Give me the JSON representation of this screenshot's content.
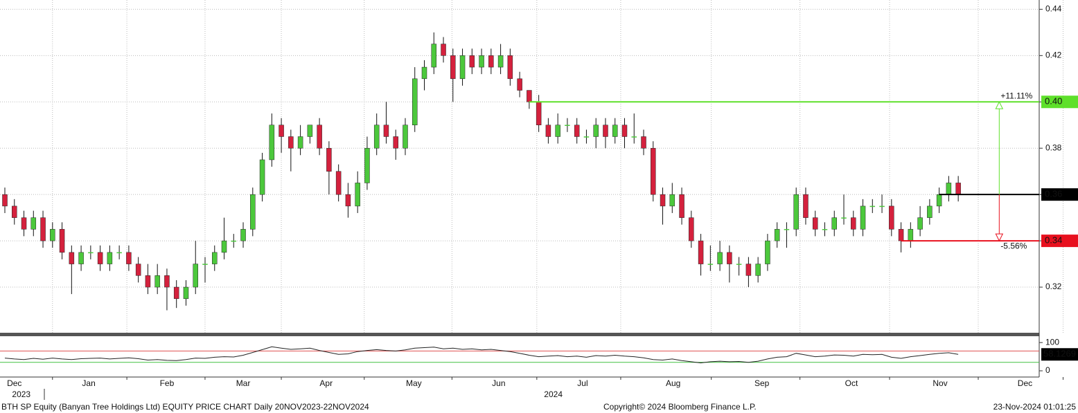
{
  "chart_data": {
    "type": "candlestick",
    "title": "BTH SP Equity (Banyan Tree Holdings Ltd) EQUITY PRICE CHART  Daily 20NOV2023-22NOV2024",
    "copyright": "Copyright© 2024 Bloomberg Finance L.P.",
    "timestamp": "23-Nov-2024 01:01:25",
    "up_color": "#4cc83c",
    "down_color": "#d4213d",
    "grid": true,
    "xlim": [
      0,
      109
    ],
    "ylim": [
      0.3,
      0.444
    ],
    "yticks": [
      0.32,
      0.34,
      0.36,
      0.38,
      {
        "value": 0.4,
        "label": "0.40"
      },
      0.42,
      0.44
    ],
    "xticks": [
      {
        "value": 1,
        "label": "Dec"
      },
      {
        "value": 8.8,
        "label": "Jan"
      },
      {
        "value": 17,
        "label": "Feb"
      },
      {
        "value": 25,
        "label": "Mar"
      },
      {
        "value": 33.7,
        "label": "Apr"
      },
      {
        "value": 42.9,
        "label": "May"
      },
      {
        "value": 51.8,
        "label": "Jun"
      },
      {
        "value": 60.6,
        "label": "Jul"
      },
      {
        "value": 70.1,
        "label": "Aug"
      },
      {
        "value": 79.4,
        "label": "Sep"
      },
      {
        "value": 88.8,
        "label": "Oct"
      },
      {
        "value": 98.1,
        "label": "Nov"
      },
      {
        "value": 107,
        "label": "Dec"
      }
    ],
    "year_ticks": [
      {
        "value": 1,
        "label": "2023"
      },
      {
        "value": 56.8,
        "label": "2024"
      }
    ],
    "series": [
      {
        "name": "BTH SP Equity",
        "values": [
          [
            0.36,
            0.363,
            0.352,
            0.355
          ],
          [
            0.355,
            0.358,
            0.347,
            0.35
          ],
          [
            0.35,
            0.353,
            0.342,
            0.345
          ],
          [
            0.345,
            0.353,
            0.342,
            0.35
          ],
          [
            0.35,
            0.353,
            0.337,
            0.34
          ],
          [
            0.34,
            0.348,
            0.337,
            0.345
          ],
          [
            0.345,
            0.348,
            0.332,
            0.335
          ],
          [
            0.335,
            0.338,
            0.317,
            0.33
          ],
          [
            0.33,
            0.338,
            0.327,
            0.335
          ],
          [
            0.335,
            0.338,
            0.332,
            0.335
          ],
          [
            0.335,
            0.338,
            0.327,
            0.33
          ],
          [
            0.33,
            0.338,
            0.327,
            0.335
          ],
          [
            0.335,
            0.338,
            0.332,
            0.335
          ],
          [
            0.335,
            0.338,
            0.327,
            0.33
          ],
          [
            0.33,
            0.333,
            0.322,
            0.325
          ],
          [
            0.325,
            0.33,
            0.317,
            0.32
          ],
          [
            0.32,
            0.33,
            0.317,
            0.325
          ],
          [
            0.325,
            0.328,
            0.31,
            0.32
          ],
          [
            0.32,
            0.323,
            0.311,
            0.315
          ],
          [
            0.315,
            0.323,
            0.312,
            0.32
          ],
          [
            0.32,
            0.34,
            0.317,
            0.33
          ],
          [
            0.33,
            0.333,
            0.322,
            0.33
          ],
          [
            0.33,
            0.338,
            0.327,
            0.335
          ],
          [
            0.335,
            0.35,
            0.332,
            0.34
          ],
          [
            0.34,
            0.343,
            0.337,
            0.34
          ],
          [
            0.34,
            0.348,
            0.337,
            0.345
          ],
          [
            0.345,
            0.363,
            0.342,
            0.36
          ],
          [
            0.36,
            0.378,
            0.357,
            0.375
          ],
          [
            0.375,
            0.395,
            0.372,
            0.39
          ],
          [
            0.39,
            0.393,
            0.378,
            0.385
          ],
          [
            0.385,
            0.388,
            0.37,
            0.38
          ],
          [
            0.38,
            0.39,
            0.377,
            0.385
          ],
          [
            0.385,
            0.39,
            0.382,
            0.39
          ],
          [
            0.39,
            0.393,
            0.377,
            0.38
          ],
          [
            0.38,
            0.383,
            0.36,
            0.37
          ],
          [
            0.37,
            0.373,
            0.357,
            0.36
          ],
          [
            0.36,
            0.365,
            0.35,
            0.355
          ],
          [
            0.355,
            0.37,
            0.352,
            0.365
          ],
          [
            0.365,
            0.385,
            0.362,
            0.38
          ],
          [
            0.38,
            0.395,
            0.377,
            0.39
          ],
          [
            0.39,
            0.4,
            0.382,
            0.385
          ],
          [
            0.385,
            0.388,
            0.375,
            0.38
          ],
          [
            0.38,
            0.393,
            0.377,
            0.39
          ],
          [
            0.39,
            0.415,
            0.387,
            0.41
          ],
          [
            0.41,
            0.418,
            0.405,
            0.415
          ],
          [
            0.415,
            0.43,
            0.412,
            0.425
          ],
          [
            0.425,
            0.428,
            0.417,
            0.42
          ],
          [
            0.42,
            0.423,
            0.4,
            0.41
          ],
          [
            0.41,
            0.423,
            0.407,
            0.42
          ],
          [
            0.42,
            0.423,
            0.412,
            0.415
          ],
          [
            0.415,
            0.423,
            0.412,
            0.42
          ],
          [
            0.42,
            0.423,
            0.412,
            0.415
          ],
          [
            0.415,
            0.425,
            0.412,
            0.42
          ],
          [
            0.42,
            0.423,
            0.407,
            0.41
          ],
          [
            0.41,
            0.413,
            0.402,
            0.405
          ],
          [
            0.405,
            0.405,
            0.397,
            0.4
          ],
          [
            0.4,
            0.403,
            0.387,
            0.39
          ],
          [
            0.39,
            0.393,
            0.382,
            0.385
          ],
          [
            0.385,
            0.395,
            0.382,
            0.39
          ],
          [
            0.39,
            0.393,
            0.387,
            0.39
          ],
          [
            0.39,
            0.393,
            0.382,
            0.385
          ],
          [
            0.385,
            0.388,
            0.382,
            0.385
          ],
          [
            0.385,
            0.393,
            0.38,
            0.39
          ],
          [
            0.39,
            0.393,
            0.38,
            0.385
          ],
          [
            0.385,
            0.393,
            0.382,
            0.39
          ],
          [
            0.39,
            0.393,
            0.38,
            0.385
          ],
          [
            0.385,
            0.395,
            0.382,
            0.385
          ],
          [
            0.385,
            0.388,
            0.377,
            0.38
          ],
          [
            0.38,
            0.383,
            0.357,
            0.36
          ],
          [
            0.36,
            0.363,
            0.347,
            0.355
          ],
          [
            0.355,
            0.365,
            0.352,
            0.36
          ],
          [
            0.36,
            0.363,
            0.347,
            0.35
          ],
          [
            0.35,
            0.353,
            0.337,
            0.34
          ],
          [
            0.34,
            0.343,
            0.325,
            0.33
          ],
          [
            0.33,
            0.338,
            0.327,
            0.33
          ],
          [
            0.33,
            0.34,
            0.327,
            0.335
          ],
          [
            0.335,
            0.338,
            0.322,
            0.33
          ],
          [
            0.33,
            0.333,
            0.325,
            0.33
          ],
          [
            0.33,
            0.333,
            0.32,
            0.325
          ],
          [
            0.325,
            0.333,
            0.322,
            0.33
          ],
          [
            0.33,
            0.343,
            0.327,
            0.34
          ],
          [
            0.34,
            0.348,
            0.337,
            0.345
          ],
          [
            0.345,
            0.348,
            0.337,
            0.345
          ],
          [
            0.345,
            0.363,
            0.342,
            0.36
          ],
          [
            0.36,
            0.363,
            0.347,
            0.35
          ],
          [
            0.35,
            0.353,
            0.342,
            0.345
          ],
          [
            0.345,
            0.348,
            0.342,
            0.345
          ],
          [
            0.345,
            0.353,
            0.342,
            0.35
          ],
          [
            0.35,
            0.36,
            0.347,
            0.35
          ],
          [
            0.35,
            0.353,
            0.342,
            0.345
          ],
          [
            0.345,
            0.358,
            0.342,
            0.355
          ],
          [
            0.355,
            0.358,
            0.352,
            0.355
          ],
          [
            0.355,
            0.36,
            0.352,
            0.355
          ],
          [
            0.355,
            0.358,
            0.342,
            0.345
          ],
          [
            0.345,
            0.348,
            0.335,
            0.34
          ],
          [
            0.34,
            0.348,
            0.337,
            0.345
          ],
          [
            0.345,
            0.355,
            0.342,
            0.35
          ],
          [
            0.35,
            0.358,
            0.347,
            0.355
          ],
          [
            0.355,
            0.363,
            0.352,
            0.36
          ],
          [
            0.36,
            0.368,
            0.357,
            0.365
          ],
          [
            0.365,
            0.368,
            0.357,
            0.36
          ]
        ]
      }
    ],
    "levels": [
      {
        "value": 0.4,
        "label": "0.40",
        "start": 55,
        "color": "#5ee02a",
        "change": "+11.11%"
      },
      {
        "value": 0.36,
        "label": "0.36",
        "start": 98,
        "color": "#000000"
      },
      {
        "value": 0.34,
        "label": "0.34",
        "start": 94,
        "color": "#e8101e",
        "change": "-5.56%"
      }
    ],
    "arrow_x": 104.3,
    "rsi": {
      "color": "#222222",
      "ylim": [
        -22,
        120
      ],
      "yticks": [
        0,
        100
      ],
      "bands": [
        {
          "value": 70,
          "color": "#e05050"
        },
        {
          "value": 30,
          "color": "#40c040"
        }
      ],
      "last_label": "58.1269",
      "values": [
        45,
        42,
        40,
        44,
        41,
        45,
        42,
        40,
        43,
        44,
        45,
        42,
        44,
        46,
        43,
        38,
        40,
        37,
        36,
        40,
        45,
        44,
        48,
        50,
        49,
        55,
        65,
        75,
        85,
        80,
        76,
        78,
        80,
        72,
        65,
        58,
        60,
        68,
        72,
        75,
        72,
        70,
        74,
        80,
        82,
        84,
        78,
        80,
        76,
        78,
        74,
        76,
        72,
        68,
        62,
        55,
        50,
        52,
        54,
        50,
        52,
        48,
        54,
        52,
        55,
        52,
        50,
        46,
        40,
        38,
        42,
        36,
        32,
        28,
        32,
        34,
        32,
        33,
        30,
        34,
        42,
        48,
        50,
        62,
        56,
        50,
        52,
        56,
        55,
        52,
        58,
        57,
        58,
        48,
        44,
        50,
        54,
        58,
        62,
        64,
        58.1269
      ]
    }
  }
}
